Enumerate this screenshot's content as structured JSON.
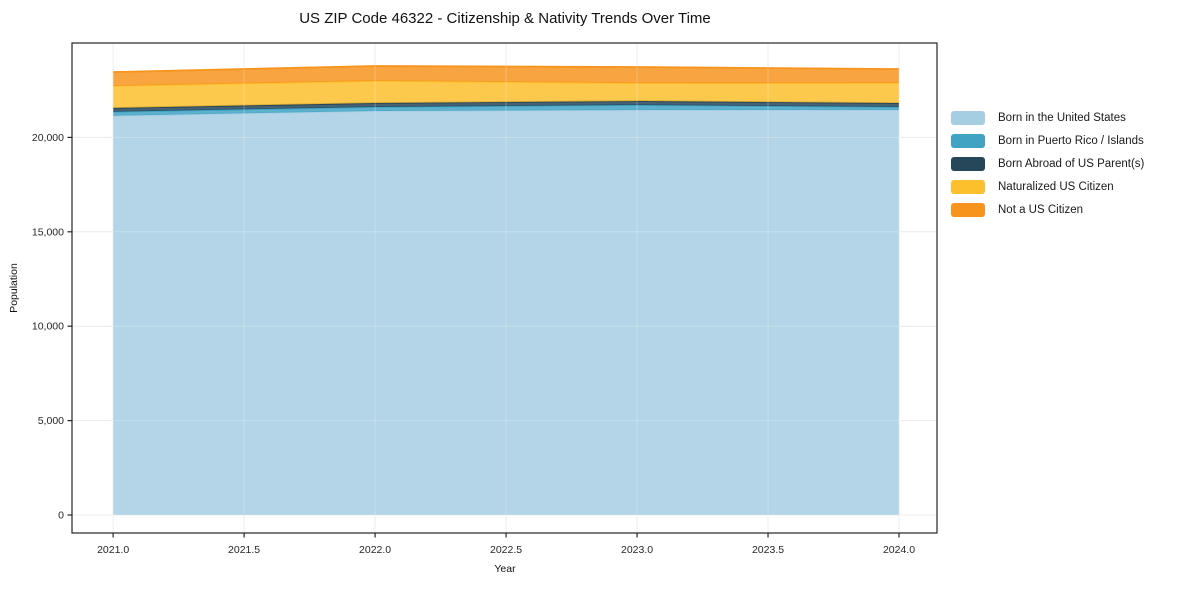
{
  "chart_data": {
    "type": "area",
    "stacked": true,
    "title": "US ZIP Code 46322 - Citizenship & Nativity Trends Over Time",
    "xlabel": "Year",
    "ylabel": "Population",
    "grid": true,
    "legend_position": "right-outside",
    "x": [
      2021,
      2022,
      2023,
      2024
    ],
    "series": [
      {
        "name": "Born in the United States",
        "color": "#a6cee3",
        "values": [
          21150,
          21400,
          21450,
          21450
        ]
      },
      {
        "name": "Born in Puerto Rico / Islands",
        "color": "#41a3c4",
        "values": [
          210,
          210,
          265,
          160
        ]
      },
      {
        "name": "Born Abroad of US Parent(s)",
        "color": "#26465a",
        "values": [
          200,
          210,
          210,
          210
        ]
      },
      {
        "name": "Naturalized US Citizen",
        "color": "#fdc02d",
        "values": [
          1160,
          1170,
          950,
          1060
        ]
      },
      {
        "name": "Not a US Citizen",
        "color": "#f7941e",
        "values": [
          740,
          790,
          850,
          740
        ]
      }
    ],
    "stacked_totals": [
      23460,
      23780,
      23725,
      23620
    ],
    "x_ticks": {
      "values": [
        2021.0,
        2021.5,
        2022.0,
        2022.5,
        2023.0,
        2023.5,
        2024.0
      ],
      "labels": [
        "2021.0",
        "2021.5",
        "2022.0",
        "2022.5",
        "2023.0",
        "2023.5",
        "2024.0"
      ]
    },
    "y_ticks": {
      "values": [
        0,
        5000,
        10000,
        15000,
        20000
      ],
      "labels": [
        "0",
        "5,000",
        "10,000",
        "15,000",
        "20,000"
      ]
    },
    "xlim": [
      2020.843,
      2024.145
    ],
    "ylim": [
      -953,
      25000
    ],
    "colors": {
      "grid": "#e7e7e7",
      "frame": "#262626",
      "background": "#ffffff",
      "fill_opacity": 0.85
    }
  }
}
